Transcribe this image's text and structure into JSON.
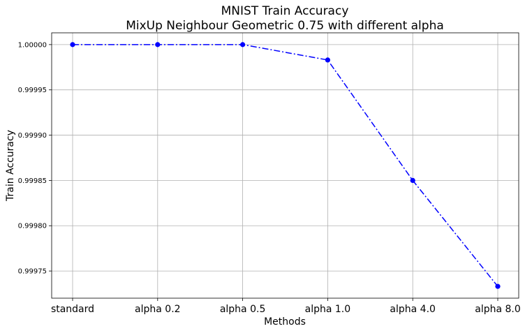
{
  "chart_data": {
    "type": "line",
    "title": [
      "MNIST Train Accuracy",
      "MixUp Neighbour Geometric 0.75 with different alpha"
    ],
    "xlabel": "Methods",
    "ylabel": "Train Accuracy",
    "categories": [
      "standard",
      "alpha 0.2",
      "alpha 0.5",
      "alpha 1.0",
      "alpha 4.0",
      "alpha 8.0"
    ],
    "values": [
      1.0,
      1.0,
      1.0,
      0.999983,
      0.99985,
      0.999733
    ],
    "ylim": [
      0.99972,
      1.000013
    ],
    "yticks": [
      "0.99975",
      "0.99980",
      "0.99985",
      "0.99990",
      "0.99995",
      "1.00000"
    ],
    "grid": true,
    "line_color": "#0000ff",
    "line_style": "dash-dot",
    "marker": "circle"
  }
}
